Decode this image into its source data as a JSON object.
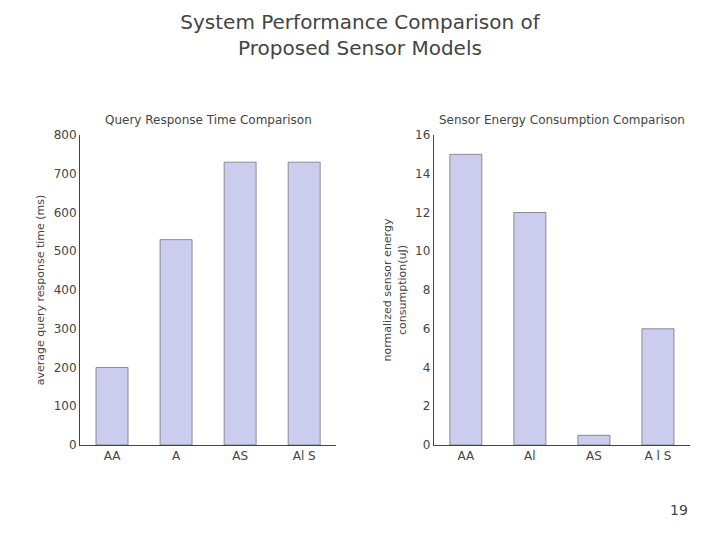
{
  "title": "System Performance Comparison of\nProposed Sensor Models",
  "annotations": [
    "19"
  ],
  "chart_data": [
    {
      "type": "bar",
      "title": "Query Response Time Comparison",
      "categories": [
        "AA",
        "A",
        "AS",
        "Al S"
      ],
      "values": [
        200,
        530,
        730,
        730
      ],
      "ylabel": "average query response time (ms)",
      "color": "#CCCCEE",
      "ylim": [
        0,
        800
      ],
      "yticks": [
        0,
        100,
        200,
        300,
        400,
        500,
        600,
        700,
        800
      ],
      "grid": false
    },
    {
      "type": "bar",
      "title": "Sensor Energy Consumption Comparison",
      "categories": [
        "AA",
        "Al",
        "AS",
        "A l S"
      ],
      "values": [
        15,
        12,
        0.5,
        6
      ],
      "ylabel": "normalized sensor energy\nconsumption(uJ)",
      "color": "#CCCCEE",
      "ylim": [
        0,
        16
      ],
      "yticks": [
        0,
        2,
        4,
        6,
        8,
        10,
        12,
        14,
        16
      ],
      "grid": false
    }
  ]
}
